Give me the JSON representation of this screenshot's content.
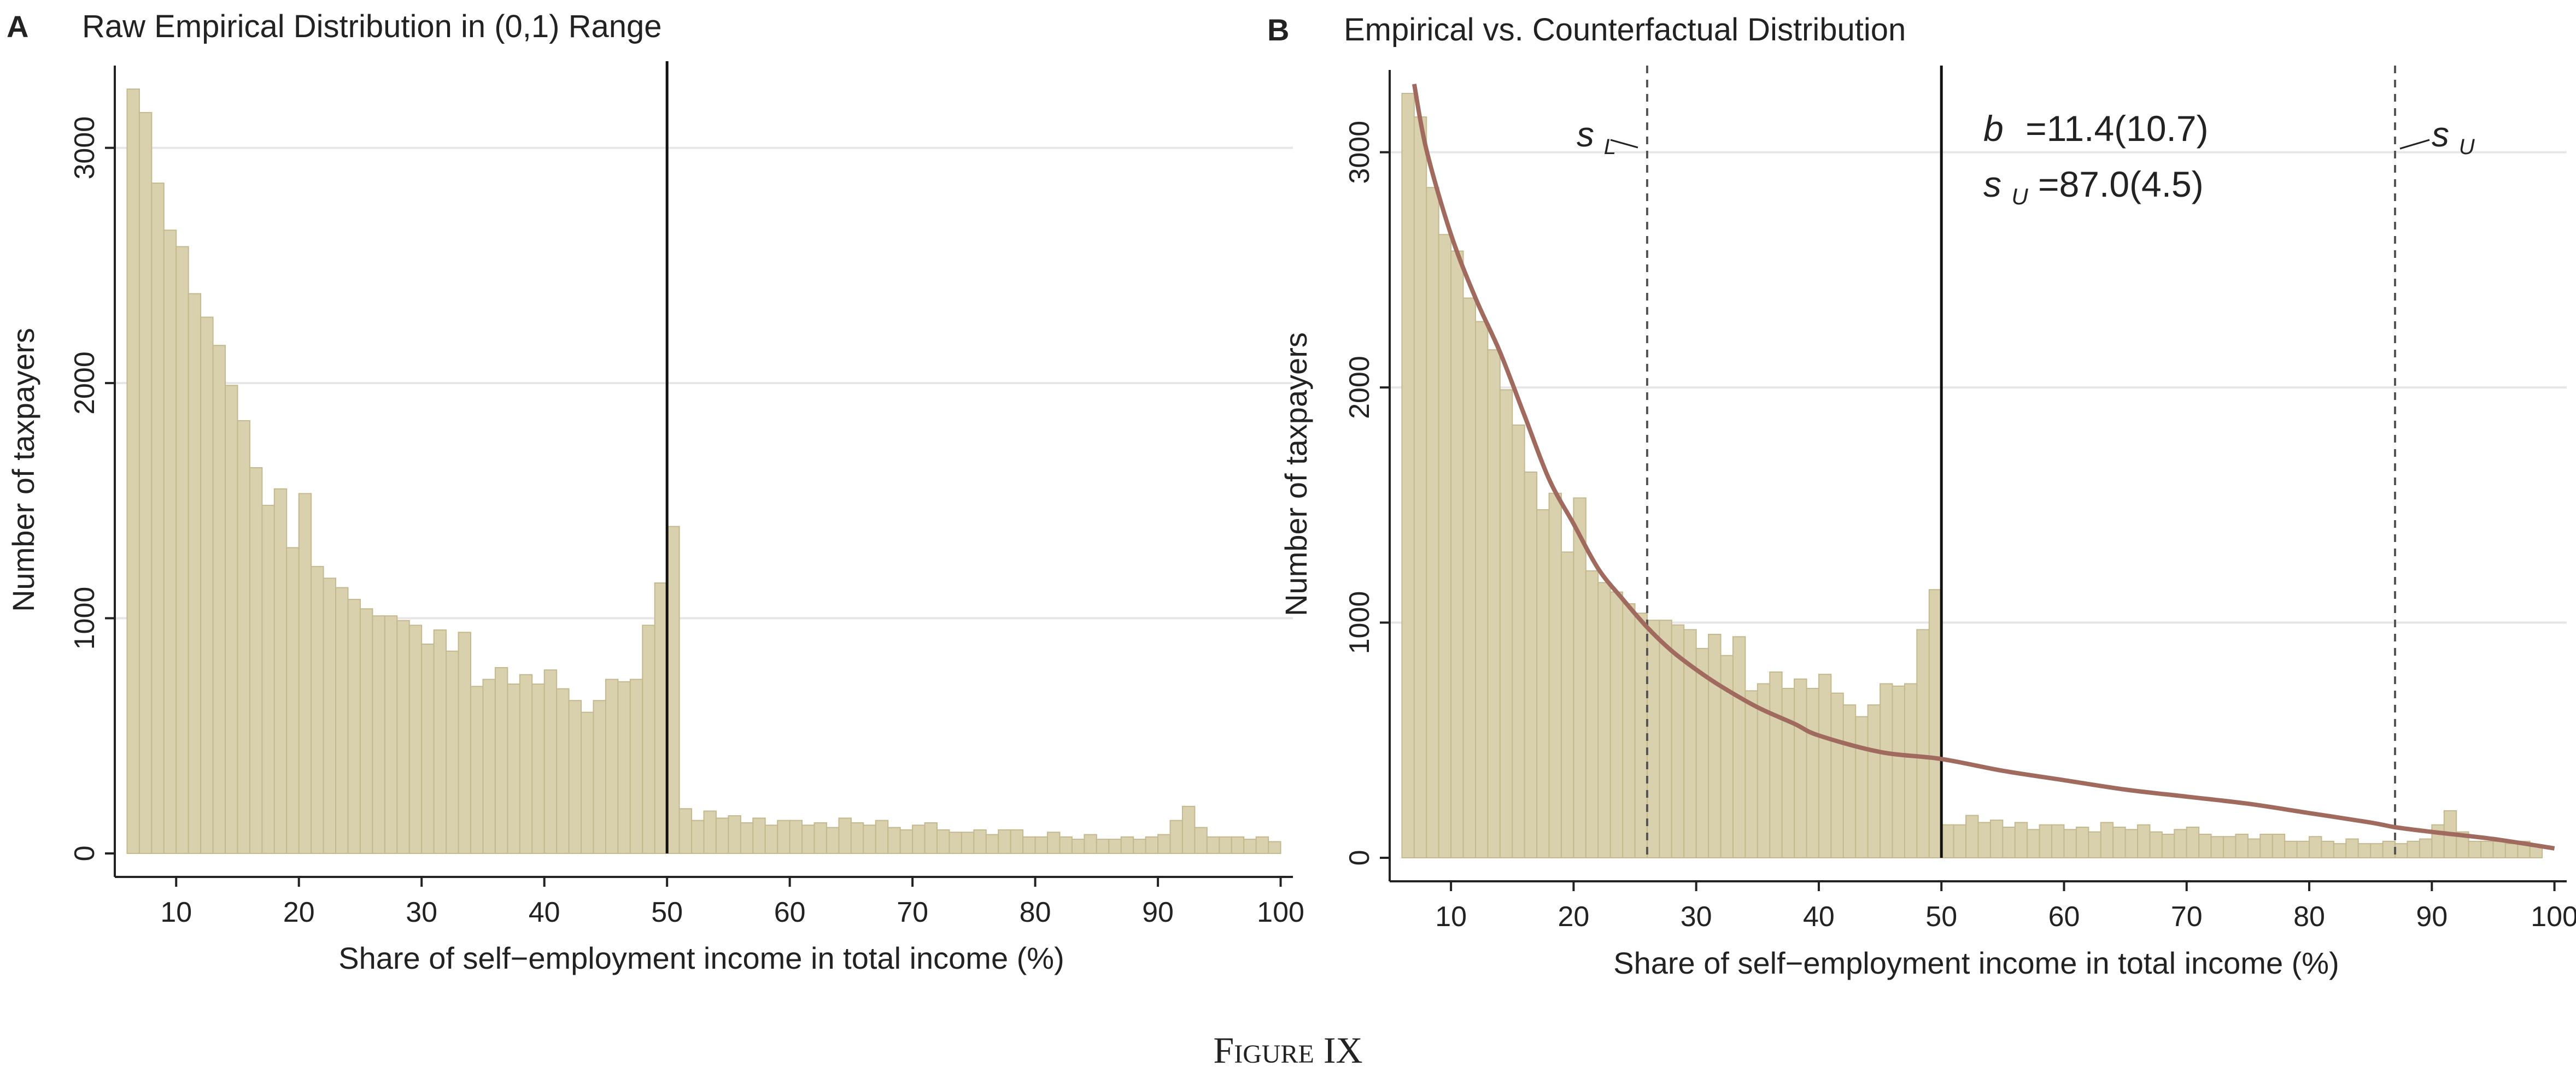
{
  "figure_caption": "Figure IX",
  "colors": {
    "bar_fill": "#d9d0ad",
    "bar_stroke": "#c4b98e",
    "curve": "#a06a5e",
    "gridline": "#e6e6e6",
    "axis": "#222222",
    "vline": "#111111",
    "dashed": "#555555"
  },
  "panels": [
    {
      "panel_label": "A",
      "title": "Raw Empirical Distribution in (0,1) Range",
      "xlabel": "Share of self−employment income in total income (%)",
      "ylabel": "Number of taxpayers",
      "x_ticks": [
        "10",
        "20",
        "30",
        "40",
        "50",
        "60",
        "70",
        "80",
        "90",
        "100"
      ],
      "y_ticks": [
        "0",
        "1000",
        "2000",
        "3000"
      ]
    },
    {
      "panel_label": "B",
      "title": "Empirical vs. Counterfactual Distribution",
      "xlabel": "Share of self−employment income in total income (%)",
      "ylabel": "Number of taxpayers",
      "x_ticks": [
        "10",
        "20",
        "30",
        "40",
        "50",
        "60",
        "70",
        "80",
        "90",
        "100"
      ],
      "y_ticks": [
        "0",
        "1000",
        "2000",
        "3000"
      ],
      "annotation_b_symbol": "b",
      "annotation_b_value": "=11.4(10.7)",
      "annotation_su_symbol": "s",
      "annotation_su_sub": "U",
      "annotation_su_value": "=87.0(4.5)",
      "marker_sl_symbol": "s",
      "marker_sl_sub": "L",
      "marker_su_symbol": "s",
      "marker_su_sub": "U"
    }
  ],
  "chart_data": [
    {
      "type": "bar",
      "title": "Raw Empirical Distribution in (0,1) Range",
      "xlabel": "Share of self−employment income in total income (%)",
      "ylabel": "Number of taxpayers",
      "xlim": [
        5,
        101
      ],
      "ylim": [
        -100,
        3350
      ],
      "bin_width": 1,
      "bins_left": [
        6,
        7,
        8,
        9,
        10,
        11,
        12,
        13,
        14,
        15,
        16,
        17,
        18,
        19,
        20,
        21,
        22,
        23,
        24,
        25,
        26,
        27,
        28,
        29,
        30,
        31,
        32,
        33,
        34,
        35,
        36,
        37,
        38,
        39,
        40,
        41,
        42,
        43,
        44,
        45,
        46,
        47,
        48,
        49,
        50,
        51,
        52,
        53,
        54,
        55,
        56,
        57,
        58,
        59,
        60,
        61,
        62,
        63,
        64,
        65,
        66,
        67,
        68,
        69,
        70,
        71,
        72,
        73,
        74,
        75,
        76,
        77,
        78,
        79,
        80,
        81,
        82,
        83,
        84,
        85,
        86,
        87,
        88,
        89,
        90,
        91,
        92,
        93,
        94,
        95,
        96,
        97,
        98,
        99
      ],
      "values": [
        3250,
        3150,
        2850,
        2650,
        2580,
        2380,
        2280,
        2160,
        1990,
        1840,
        1640,
        1480,
        1550,
        1300,
        1530,
        1220,
        1170,
        1130,
        1080,
        1040,
        1010,
        1010,
        990,
        970,
        890,
        950,
        860,
        940,
        710,
        740,
        790,
        720,
        760,
        720,
        780,
        700,
        650,
        600,
        650,
        740,
        730,
        740,
        970,
        1150,
        1390,
        190,
        140,
        180,
        150,
        160,
        130,
        150,
        120,
        140,
        140,
        120,
        130,
        110,
        150,
        130,
        120,
        140,
        110,
        100,
        120,
        130,
        100,
        90,
        90,
        100,
        80,
        100,
        100,
        70,
        70,
        90,
        70,
        60,
        80,
        60,
        60,
        70,
        60,
        70,
        80,
        140,
        200,
        110,
        70,
        70,
        70,
        60,
        70,
        50
      ],
      "vlines": [
        {
          "x": 50,
          "style": "solid"
        }
      ],
      "y_ticks": [
        0,
        1000,
        2000,
        3000
      ],
      "x_ticks": [
        10,
        20,
        30,
        40,
        50,
        60,
        70,
        80,
        90,
        100
      ],
      "grid": "horizontal"
    },
    {
      "type": "bar",
      "title": "Empirical vs. Counterfactual Distribution",
      "xlabel": "Share of self−employment income in total income (%)",
      "ylabel": "Number of taxpayers",
      "xlim": [
        5,
        101
      ],
      "ylim": [
        -100,
        3350
      ],
      "bin_width": 1,
      "bins_left": [
        6,
        7,
        8,
        9,
        10,
        11,
        12,
        13,
        14,
        15,
        16,
        17,
        18,
        19,
        20,
        21,
        22,
        23,
        24,
        25,
        26,
        27,
        28,
        29,
        30,
        31,
        32,
        33,
        34,
        35,
        36,
        37,
        38,
        39,
        40,
        41,
        42,
        43,
        44,
        45,
        46,
        47,
        48,
        49,
        50,
        51,
        52,
        53,
        54,
        55,
        56,
        57,
        58,
        59,
        60,
        61,
        62,
        63,
        64,
        65,
        66,
        67,
        68,
        69,
        70,
        71,
        72,
        73,
        74,
        75,
        76,
        77,
        78,
        79,
        80,
        81,
        82,
        83,
        84,
        85,
        86,
        87,
        88,
        89,
        90,
        91,
        92,
        93,
        94,
        95,
        96,
        97,
        98,
        99
      ],
      "values": [
        3250,
        3150,
        2850,
        2650,
        2580,
        2380,
        2280,
        2160,
        1990,
        1840,
        1640,
        1480,
        1550,
        1300,
        1530,
        1220,
        1170,
        1130,
        1080,
        1040,
        1010,
        1010,
        990,
        970,
        890,
        950,
        860,
        940,
        710,
        740,
        790,
        720,
        760,
        720,
        780,
        700,
        650,
        600,
        650,
        740,
        730,
        740,
        970,
        1140,
        140,
        140,
        180,
        150,
        160,
        130,
        150,
        120,
        140,
        140,
        120,
        130,
        110,
        150,
        130,
        120,
        140,
        110,
        100,
        120,
        130,
        100,
        90,
        90,
        100,
        80,
        100,
        100,
        70,
        70,
        90,
        70,
        60,
        80,
        60,
        60,
        70,
        60,
        70,
        80,
        140,
        200,
        110,
        70,
        70,
        70,
        60,
        70,
        50
      ],
      "counterfactual_curve": {
        "x": [
          7,
          8,
          10,
          12,
          14,
          16,
          18,
          20,
          22,
          24,
          26,
          28,
          30,
          32,
          35,
          38,
          40,
          45,
          50,
          55,
          60,
          65,
          70,
          75,
          80,
          85,
          87,
          90,
          95,
          100
        ],
        "y": [
          3290,
          3010,
          2650,
          2380,
          2150,
          1880,
          1610,
          1420,
          1230,
          1100,
          980,
          880,
          800,
          730,
          640,
          570,
          520,
          450,
          420,
          370,
          330,
          290,
          260,
          230,
          190,
          150,
          130,
          110,
          80,
          40
        ]
      },
      "vlines": [
        {
          "x": 26,
          "style": "dashed",
          "label": "s_L"
        },
        {
          "x": 50,
          "style": "solid"
        },
        {
          "x": 87,
          "style": "dashed",
          "label": "s_U"
        }
      ],
      "annotations": [
        "b =11.4(10.7)",
        "s_U =87.0(4.5)"
      ],
      "y_ticks": [
        0,
        1000,
        2000,
        3000
      ],
      "x_ticks": [
        10,
        20,
        30,
        40,
        50,
        60,
        70,
        80,
        90,
        100
      ],
      "grid": "horizontal"
    }
  ]
}
